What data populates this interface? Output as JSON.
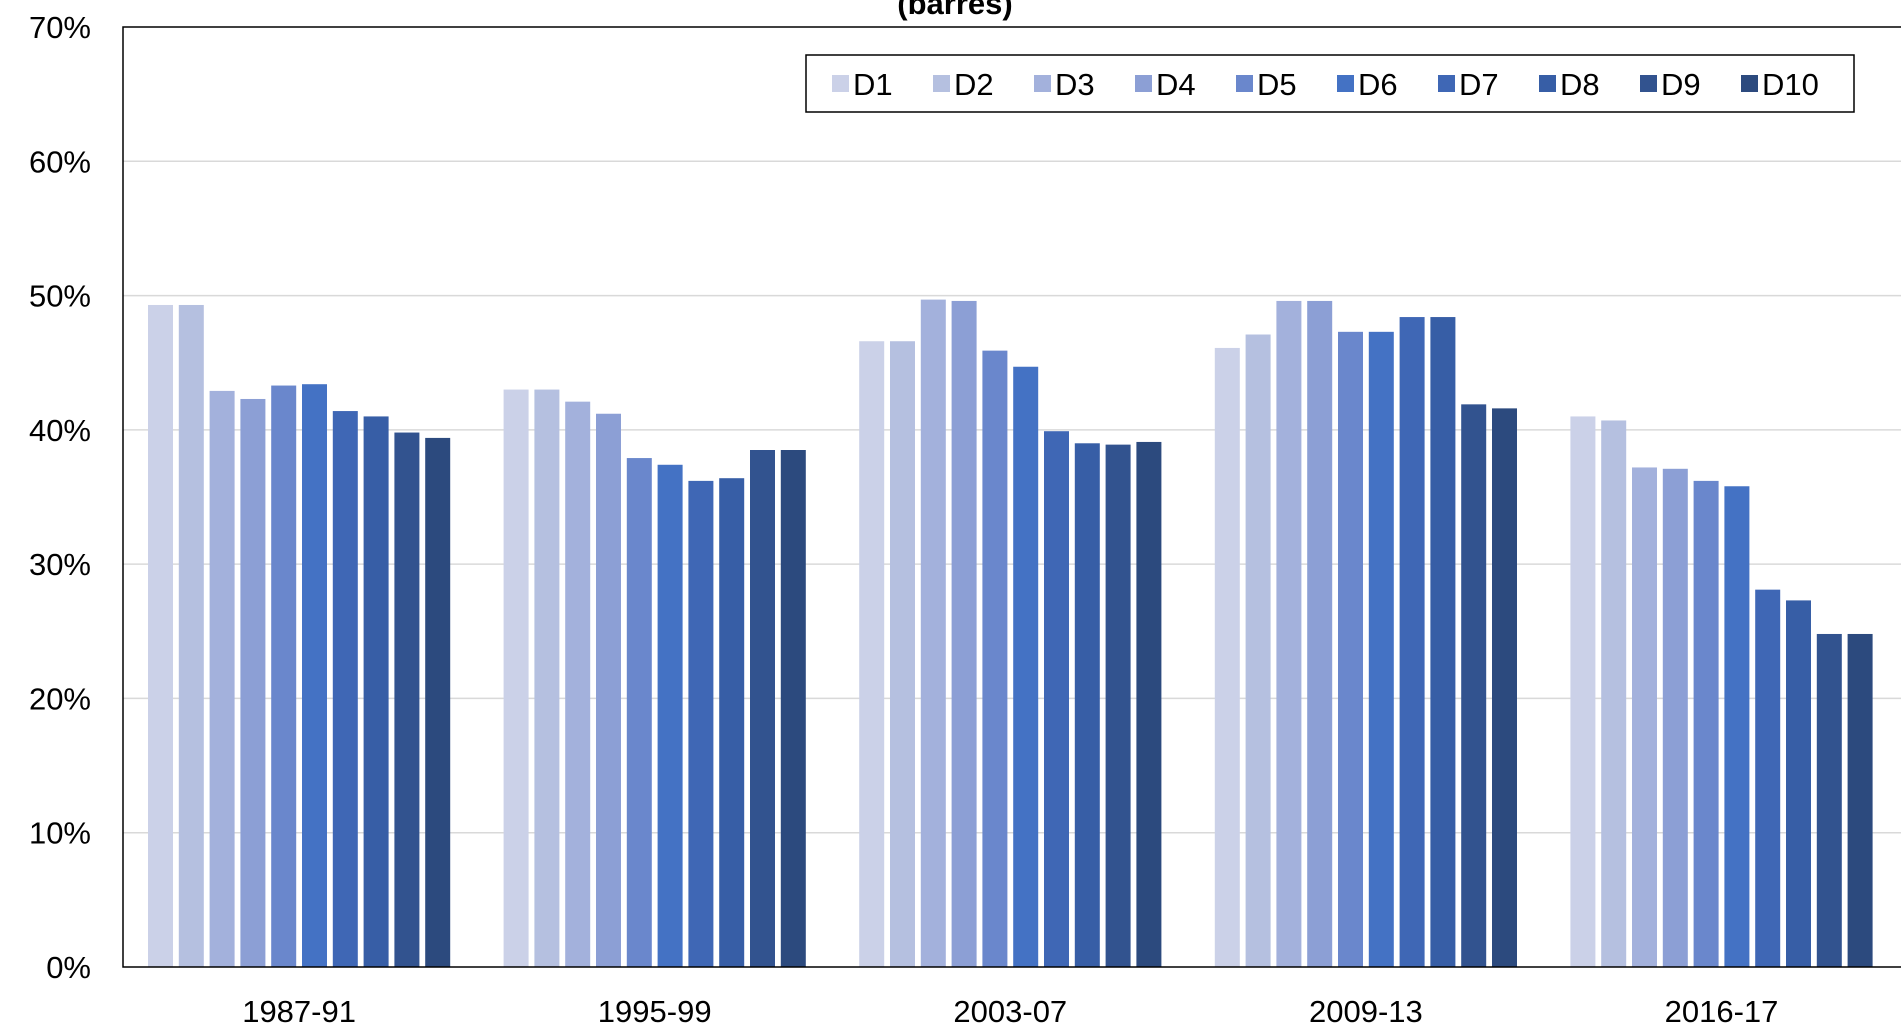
{
  "chart_data": {
    "type": "bar",
    "title": "(barres)",
    "xlabel": "",
    "ylabel": "",
    "ylim": [
      0,
      0.7
    ],
    "yticks": [
      0,
      0.1,
      0.2,
      0.3,
      0.4,
      0.5,
      0.6,
      0.7
    ],
    "ytick_labels": [
      "0%",
      "10%",
      "20%",
      "30%",
      "40%",
      "50%",
      "60%",
      "70%"
    ],
    "grid": true,
    "legend_position": "top-right",
    "categories": [
      "1987-91",
      "1995-99",
      "2003-07",
      "2009-13",
      "2016-17"
    ],
    "series": [
      {
        "name": "D1",
        "color": "#cbd1e8",
        "values": [
          0.493,
          0.43,
          0.466,
          0.461,
          0.41
        ]
      },
      {
        "name": "D2",
        "color": "#b5c0e0",
        "values": [
          0.493,
          0.43,
          0.466,
          0.471,
          0.407
        ]
      },
      {
        "name": "D3",
        "color": "#a3b1dc",
        "values": [
          0.429,
          0.421,
          0.497,
          0.496,
          0.372
        ]
      },
      {
        "name": "D4",
        "color": "#8c9fd5",
        "values": [
          0.423,
          0.412,
          0.496,
          0.496,
          0.371
        ]
      },
      {
        "name": "D5",
        "color": "#6a87cc",
        "values": [
          0.433,
          0.379,
          0.459,
          0.473,
          0.362
        ]
      },
      {
        "name": "D6",
        "color": "#4472c4",
        "values": [
          0.434,
          0.374,
          0.447,
          0.473,
          0.358
        ]
      },
      {
        "name": "D7",
        "color": "#3f67b5",
        "values": [
          0.414,
          0.362,
          0.399,
          0.484,
          0.281
        ]
      },
      {
        "name": "D8",
        "color": "#375ea6",
        "values": [
          0.41,
          0.364,
          0.39,
          0.484,
          0.273
        ]
      },
      {
        "name": "D9",
        "color": "#32538f",
        "values": [
          0.398,
          0.385,
          0.389,
          0.419,
          0.248
        ]
      },
      {
        "name": "D10",
        "color": "#2c4a7e",
        "values": [
          0.394,
          0.385,
          0.391,
          0.416,
          0.248
        ]
      }
    ]
  }
}
